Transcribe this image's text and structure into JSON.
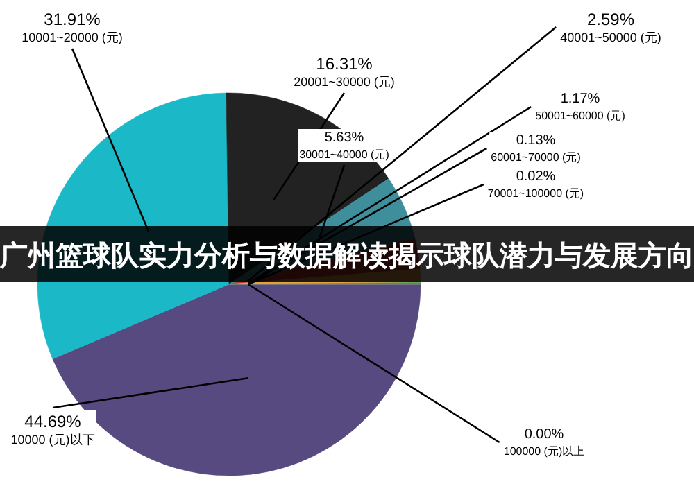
{
  "chart_data": {
    "type": "pie",
    "title": "广州篮球队实力分析与数据解读揭示球队潜力与发展方向",
    "categories": [
      "10000 (元)以下",
      "10001~20000 (元)",
      "20001~30000 (元)",
      "30001~40000 (元)",
      "40001~50000 (元)",
      "50001~60000 (元)",
      "60001~70000 (元)",
      "70001~100000 (元)",
      "100000 (元)以上"
    ],
    "values": [
      44.69,
      31.91,
      16.31,
      5.63,
      2.59,
      1.17,
      0.13,
      0.02,
      0.0
    ],
    "value_labels": [
      "44.69%",
      "31.91%",
      "16.31%",
      "5.63%",
      "2.59%",
      "1.17%",
      "0.13%",
      "0.02%",
      "0.00%"
    ],
    "colors": [
      "#574a80",
      "#1bb9c8",
      "#222222",
      "#3f8e9c",
      "#c0392b",
      "#e6a23c",
      "#3c9a5b",
      "#555555",
      "#999999"
    ]
  }
}
